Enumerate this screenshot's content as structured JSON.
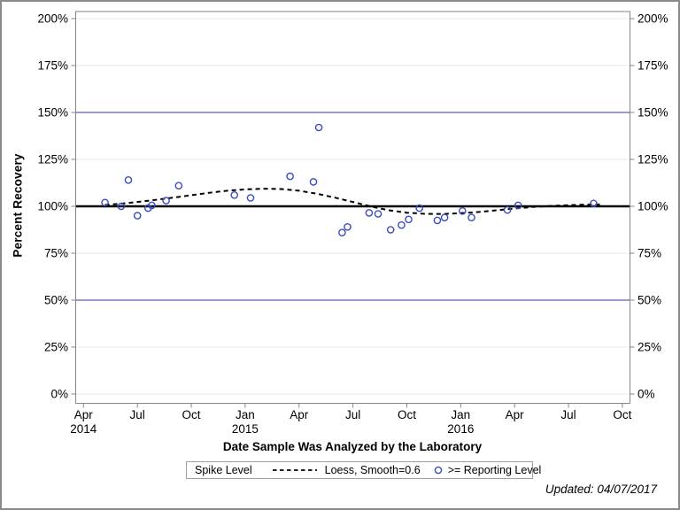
{
  "footer": {
    "updated": "Updated: 04/07/2017"
  },
  "colors": {
    "marker": "#3b4cc0",
    "reference": "#3434a4",
    "spike_line": "#000000",
    "loess_line": "#000000",
    "grid": "#e8e8e8",
    "axis": "#868686",
    "text": "#000000"
  },
  "chart_data": {
    "type": "scatter",
    "title": "",
    "xlabel": "Date Sample Was Analyzed by the Laboratory",
    "ylabel": "Percent Recovery",
    "x_axis": {
      "unit": "months since Apr 2014",
      "range_months": [
        0,
        30
      ],
      "ticks": [
        {
          "m": 0,
          "line1": "Apr",
          "line2": "2014"
        },
        {
          "m": 3,
          "line1": "Jul",
          "line2": ""
        },
        {
          "m": 6,
          "line1": "Oct",
          "line2": ""
        },
        {
          "m": 9,
          "line1": "Jan",
          "line2": "2015"
        },
        {
          "m": 12,
          "line1": "Apr",
          "line2": ""
        },
        {
          "m": 15,
          "line1": "Jul",
          "line2": ""
        },
        {
          "m": 18,
          "line1": "Oct",
          "line2": ""
        },
        {
          "m": 21,
          "line1": "Jan",
          "line2": "2016"
        },
        {
          "m": 24,
          "line1": "Apr",
          "line2": ""
        },
        {
          "m": 27,
          "line1": "Jul",
          "line2": ""
        },
        {
          "m": 30,
          "line1": "Oct",
          "line2": ""
        }
      ]
    },
    "y_axis": {
      "range": [
        0,
        200
      ],
      "labels_both_sides": true,
      "ticks": [
        {
          "v": 0,
          "label": "0%"
        },
        {
          "v": 25,
          "label": "25%"
        },
        {
          "v": 50,
          "label": "50%"
        },
        {
          "v": 75,
          "label": "75%"
        },
        {
          "v": 100,
          "label": "100%"
        },
        {
          "v": 125,
          "label": "125%"
        },
        {
          "v": 150,
          "label": "150%"
        },
        {
          "v": 175,
          "label": "175%"
        },
        {
          "v": 200,
          "label": "200%"
        }
      ]
    },
    "gridlines": true,
    "reference_lines": [
      {
        "name": "Spike Level",
        "value": 100,
        "style": "solid",
        "width": 2.5,
        "color": "#000000"
      },
      {
        "name": "reference-line-150pct",
        "value": 150,
        "style": "solid",
        "width": 1,
        "color": "#3434a4"
      },
      {
        "name": "reference-line-50pct",
        "value": 50,
        "style": "solid",
        "width": 1,
        "color": "#3434a4"
      }
    ],
    "series": [
      {
        "name": ">= Reporting Level",
        "type": "scatter",
        "marker": "open-circle",
        "color": "#3b4cc0",
        "points_m_pct": [
          [
            1.2,
            102
          ],
          [
            2.1,
            100
          ],
          [
            2.5,
            114
          ],
          [
            3.0,
            95
          ],
          [
            3.6,
            99
          ],
          [
            3.8,
            100.5
          ],
          [
            4.6,
            103
          ],
          [
            5.3,
            111
          ],
          [
            8.4,
            106
          ],
          [
            9.3,
            104.5
          ],
          [
            11.5,
            116
          ],
          [
            12.8,
            113
          ],
          [
            13.1,
            142
          ],
          [
            14.4,
            86
          ],
          [
            14.7,
            89
          ],
          [
            15.9,
            96.5
          ],
          [
            16.4,
            96
          ],
          [
            17.1,
            87.5
          ],
          [
            17.7,
            90
          ],
          [
            18.1,
            93
          ],
          [
            18.7,
            99
          ],
          [
            19.7,
            92.5
          ],
          [
            20.1,
            94
          ],
          [
            21.1,
            97.5
          ],
          [
            21.6,
            94
          ],
          [
            23.6,
            98
          ],
          [
            24.2,
            100.5
          ],
          [
            28.4,
            101.5
          ]
        ]
      },
      {
        "name": "Loess, Smooth=0.6",
        "type": "line",
        "style": "dashed",
        "color": "#000000",
        "points_m_pct": [
          [
            1.2,
            100.7
          ],
          [
            2,
            101.3
          ],
          [
            3,
            102.3
          ],
          [
            4,
            103.4
          ],
          [
            5,
            104.6
          ],
          [
            6,
            105.9
          ],
          [
            7,
            107.2
          ],
          [
            8,
            108.3
          ],
          [
            9,
            109.0
          ],
          [
            10,
            109.4
          ],
          [
            11,
            109.2
          ],
          [
            12,
            108.3
          ],
          [
            13,
            106.7
          ],
          [
            14,
            104.6
          ],
          [
            15,
            102.3
          ],
          [
            16,
            99.9
          ],
          [
            17,
            97.9
          ],
          [
            18,
            96.6
          ],
          [
            19,
            96.0
          ],
          [
            20,
            95.9
          ],
          [
            21,
            96.3
          ],
          [
            22,
            97.0
          ],
          [
            23,
            97.9
          ],
          [
            24,
            98.8
          ],
          [
            25,
            99.6
          ],
          [
            26,
            100.2
          ],
          [
            27,
            100.6
          ],
          [
            28,
            100.9
          ],
          [
            28.9,
            101.0
          ]
        ]
      }
    ],
    "legend": {
      "position": "bottom",
      "title": "Spike Level",
      "items": [
        "Loess, Smooth=0.6",
        ">= Reporting Level"
      ]
    }
  }
}
